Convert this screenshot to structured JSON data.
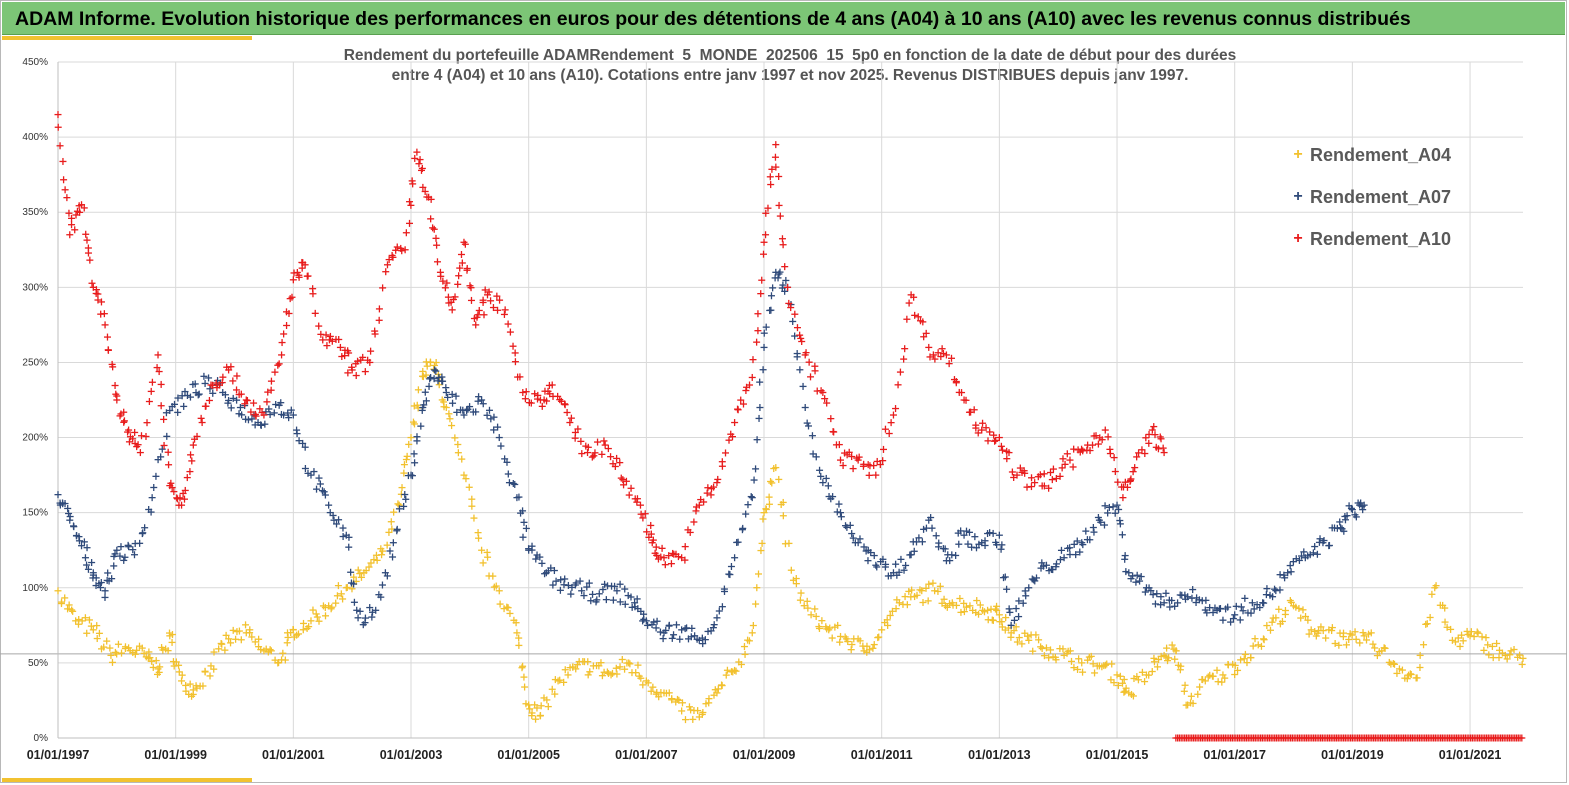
{
  "banner": {
    "title": "ADAM Informe. Evolution historique des performances en euros pour des détentions de 4 ans (A04) à 10 ans (A10) avec les revenus connus distribués"
  },
  "colors": {
    "banner": "#7cc576",
    "accent": "#f2c230",
    "A04": "#f2c12e",
    "A07": "#2f4a7a",
    "A10": "#e81c1c"
  },
  "chart_data": {
    "type": "scatter",
    "title_line1": "Rendement du portefeuille ADAMRendement_5_MONDE_202506_15_5p0  en fonction de la date de début pour des durées",
    "title_line2": "entre 4 (A04) et 10 ans (A10). Cotations  entre janv 1997 et nov 2025. Revenus DISTRIBUES depuis janv 1997.",
    "xlabel": "",
    "ylabel": "",
    "x_range": [
      "01/01/1997",
      "01/12/2021"
    ],
    "ylim": [
      0,
      4.5
    ],
    "y_ticks": [
      0,
      0.5,
      1.0,
      1.5,
      2.0,
      2.5,
      3.0,
      3.5,
      4.0,
      4.5
    ],
    "y_tick_labels": [
      "0%",
      "50%",
      "100%",
      "150%",
      "200%",
      "250%",
      "300%",
      "350%",
      "400%",
      "450%"
    ],
    "x_tick_labels": [
      "01/01/1997",
      "01/01/1999",
      "01/01/2001",
      "01/01/2003",
      "01/01/2005",
      "01/01/2007",
      "01/01/2009",
      "01/01/2011",
      "01/01/2013",
      "01/01/2015",
      "01/01/2017",
      "01/01/2019",
      "01/01/2021"
    ],
    "x_tick_years": [
      1997,
      1999,
      2001,
      2003,
      2005,
      2007,
      2009,
      2011,
      2013,
      2015,
      2017,
      2019,
      2021
    ],
    "reference_line": 0.56,
    "legend_position": "top-right",
    "series": [
      {
        "name": "Rendement_A04",
        "color": "#f2c12e",
        "x": [
          1997.0,
          1997.3,
          1997.6,
          1997.9,
          1998.2,
          1998.5,
          1998.7,
          1998.9,
          1999.1,
          1999.3,
          1999.6,
          1999.9,
          2000.2,
          2000.5,
          2000.8,
          2001.0,
          2001.3,
          2001.6,
          2001.9,
          2002.2,
          2002.5,
          2002.8,
          2003.0,
          2003.2,
          2003.4,
          2003.6,
          2003.9,
          2004.2,
          2004.5,
          2004.8,
          2005.0,
          2005.2,
          2005.5,
          2005.8,
          2006.1,
          2006.4,
          2006.7,
          2007.0,
          2007.3,
          2007.6,
          2007.9,
          2008.2,
          2008.5,
          2008.8,
          2009.0,
          2009.2,
          2009.5,
          2009.8,
          2010.1,
          2010.4,
          2010.7,
          2011.0,
          2011.3,
          2011.6,
          2011.9,
          2012.2,
          2012.5,
          2012.8,
          2013.0,
          2013.2,
          2013.5,
          2013.8,
          2014.1,
          2014.4,
          2014.7,
          2015.0,
          2015.2,
          2015.5,
          2015.8,
          2016.0,
          2016.2,
          2016.5,
          2016.8,
          2017.1,
          2017.4,
          2017.7,
          2018.0,
          2018.3,
          2018.6,
          2018.9,
          2019.2,
          2019.5,
          2019.8,
          2020.1,
          2020.4,
          2020.7,
          2021.0,
          2021.3,
          2021.6,
          2021.9
        ],
        "values": [
          0.98,
          0.78,
          0.72,
          0.55,
          0.6,
          0.54,
          0.46,
          0.68,
          0.38,
          0.32,
          0.48,
          0.66,
          0.7,
          0.58,
          0.52,
          0.72,
          0.78,
          0.88,
          1.0,
          1.1,
          1.22,
          1.55,
          2.0,
          2.44,
          2.48,
          2.2,
          1.75,
          1.25,
          0.98,
          0.7,
          0.22,
          0.15,
          0.38,
          0.46,
          0.48,
          0.42,
          0.5,
          0.38,
          0.3,
          0.18,
          0.14,
          0.3,
          0.45,
          0.7,
          1.5,
          1.8,
          1.05,
          0.82,
          0.72,
          0.66,
          0.58,
          0.72,
          0.9,
          0.95,
          0.98,
          0.9,
          0.88,
          0.85,
          0.82,
          0.7,
          0.65,
          0.6,
          0.55,
          0.5,
          0.48,
          0.42,
          0.3,
          0.42,
          0.55,
          0.58,
          0.22,
          0.38,
          0.42,
          0.52,
          0.62,
          0.8,
          0.88,
          0.72,
          0.72,
          0.62,
          0.68,
          0.58,
          0.46,
          0.4,
          1.0,
          0.65,
          0.68,
          0.62,
          0.55,
          0.53
        ]
      },
      {
        "name": "Rendement_A07",
        "color": "#2f4a7a",
        "x": [
          1997.0,
          1997.2,
          1997.4,
          1997.6,
          1997.8,
          1998.0,
          1998.3,
          1998.6,
          1998.9,
          1999.2,
          1999.5,
          1999.8,
          2000.1,
          2000.4,
          2000.7,
          2001.0,
          2001.3,
          2001.6,
          2001.9,
          2002.1,
          2002.4,
          2002.7,
          2003.0,
          2003.2,
          2003.4,
          2003.6,
          2003.9,
          2004.2,
          2004.5,
          2004.8,
          2005.0,
          2005.3,
          2005.6,
          2005.9,
          2006.2,
          2006.5,
          2006.8,
          2007.0,
          2007.3,
          2007.6,
          2007.9,
          2008.2,
          2008.5,
          2008.8,
          2009.0,
          2009.2,
          2009.4,
          2009.7,
          2010.0,
          2010.3,
          2010.6,
          2010.9,
          2011.2,
          2011.5,
          2011.8,
          2012.1,
          2012.4,
          2012.7,
          2013.0,
          2013.2,
          2013.5,
          2013.8,
          2014.1,
          2014.4,
          2014.7,
          2015.0,
          2015.2,
          2015.5,
          2015.8,
          2016.1,
          2016.4,
          2016.7,
          2017.0,
          2017.3,
          2017.6,
          2017.9,
          2018.2,
          2018.5,
          2018.8,
          2019.0,
          2019.2
        ],
        "values": [
          1.62,
          1.45,
          1.28,
          1.1,
          0.98,
          1.25,
          1.22,
          1.6,
          2.18,
          2.28,
          2.36,
          2.3,
          2.2,
          2.1,
          2.22,
          2.15,
          1.75,
          1.55,
          1.35,
          0.8,
          0.85,
          1.3,
          1.75,
          2.2,
          2.45,
          2.3,
          2.15,
          2.25,
          2.0,
          1.6,
          1.25,
          1.1,
          1.02,
          0.98,
          0.96,
          0.98,
          0.9,
          0.78,
          0.7,
          0.72,
          0.65,
          0.8,
          1.2,
          1.6,
          2.6,
          3.1,
          3.0,
          2.2,
          1.7,
          1.5,
          1.3,
          1.15,
          1.1,
          1.22,
          1.45,
          1.18,
          1.35,
          1.3,
          1.35,
          0.75,
          1.0,
          1.15,
          1.2,
          1.3,
          1.45,
          1.55,
          1.1,
          1.0,
          0.9,
          0.95,
          0.92,
          0.85,
          0.82,
          0.9,
          0.95,
          1.1,
          1.2,
          1.3,
          1.4,
          1.52,
          1.55
        ]
      },
      {
        "name": "Rendement_A10",
        "color": "#e81c1c",
        "x": [
          1997.0,
          1997.2,
          1997.4,
          1997.6,
          1997.8,
          1998.0,
          1998.2,
          1998.4,
          1998.7,
          1998.9,
          1999.1,
          1999.3,
          1999.6,
          1999.9,
          2000.2,
          2000.5,
          2000.8,
          2001.0,
          2001.2,
          2001.5,
          2001.8,
          2002.0,
          2002.3,
          2002.6,
          2002.9,
          2003.1,
          2003.3,
          2003.5,
          2003.7,
          2003.9,
          2004.1,
          2004.3,
          2004.6,
          2004.9,
          2005.2,
          2005.4,
          2005.7,
          2006.0,
          2006.3,
          2006.6,
          2006.9,
          2007.1,
          2007.3,
          2007.6,
          2007.9,
          2008.2,
          2008.5,
          2008.8,
          2009.0,
          2009.2,
          2009.4,
          2009.7,
          2010.0,
          2010.3,
          2010.6,
          2010.9,
          2011.2,
          2011.5,
          2011.8,
          2012.1,
          2012.4,
          2012.7,
          2013.0,
          2013.3,
          2013.6,
          2013.9,
          2014.2,
          2014.5,
          2014.8,
          2015.1,
          2015.3,
          2015.6,
          2015.8
        ],
        "values": [
          4.15,
          3.35,
          3.55,
          3.0,
          2.75,
          2.25,
          2.05,
          1.9,
          2.55,
          1.68,
          1.55,
          1.95,
          2.35,
          2.45,
          2.25,
          2.15,
          2.55,
          3.05,
          3.15,
          2.65,
          2.6,
          2.45,
          2.5,
          3.15,
          3.25,
          3.9,
          3.6,
          3.1,
          2.85,
          3.3,
          2.75,
          2.95,
          2.85,
          2.3,
          2.25,
          2.35,
          2.1,
          1.9,
          1.95,
          1.72,
          1.55,
          1.3,
          1.2,
          1.2,
          1.55,
          1.7,
          2.1,
          2.4,
          3.3,
          3.95,
          3.0,
          2.55,
          2.3,
          1.85,
          1.85,
          1.75,
          2.15,
          2.95,
          2.6,
          2.55,
          2.25,
          2.05,
          2.0,
          1.75,
          1.7,
          1.72,
          1.85,
          1.95,
          2.05,
          1.6,
          1.8,
          2.05,
          1.9
        ]
      },
      {
        "name": "baseline_markers",
        "color": "#e81c1c",
        "x_start": 2016.0,
        "x_end": 2021.9,
        "value": 0.0
      }
    ]
  }
}
